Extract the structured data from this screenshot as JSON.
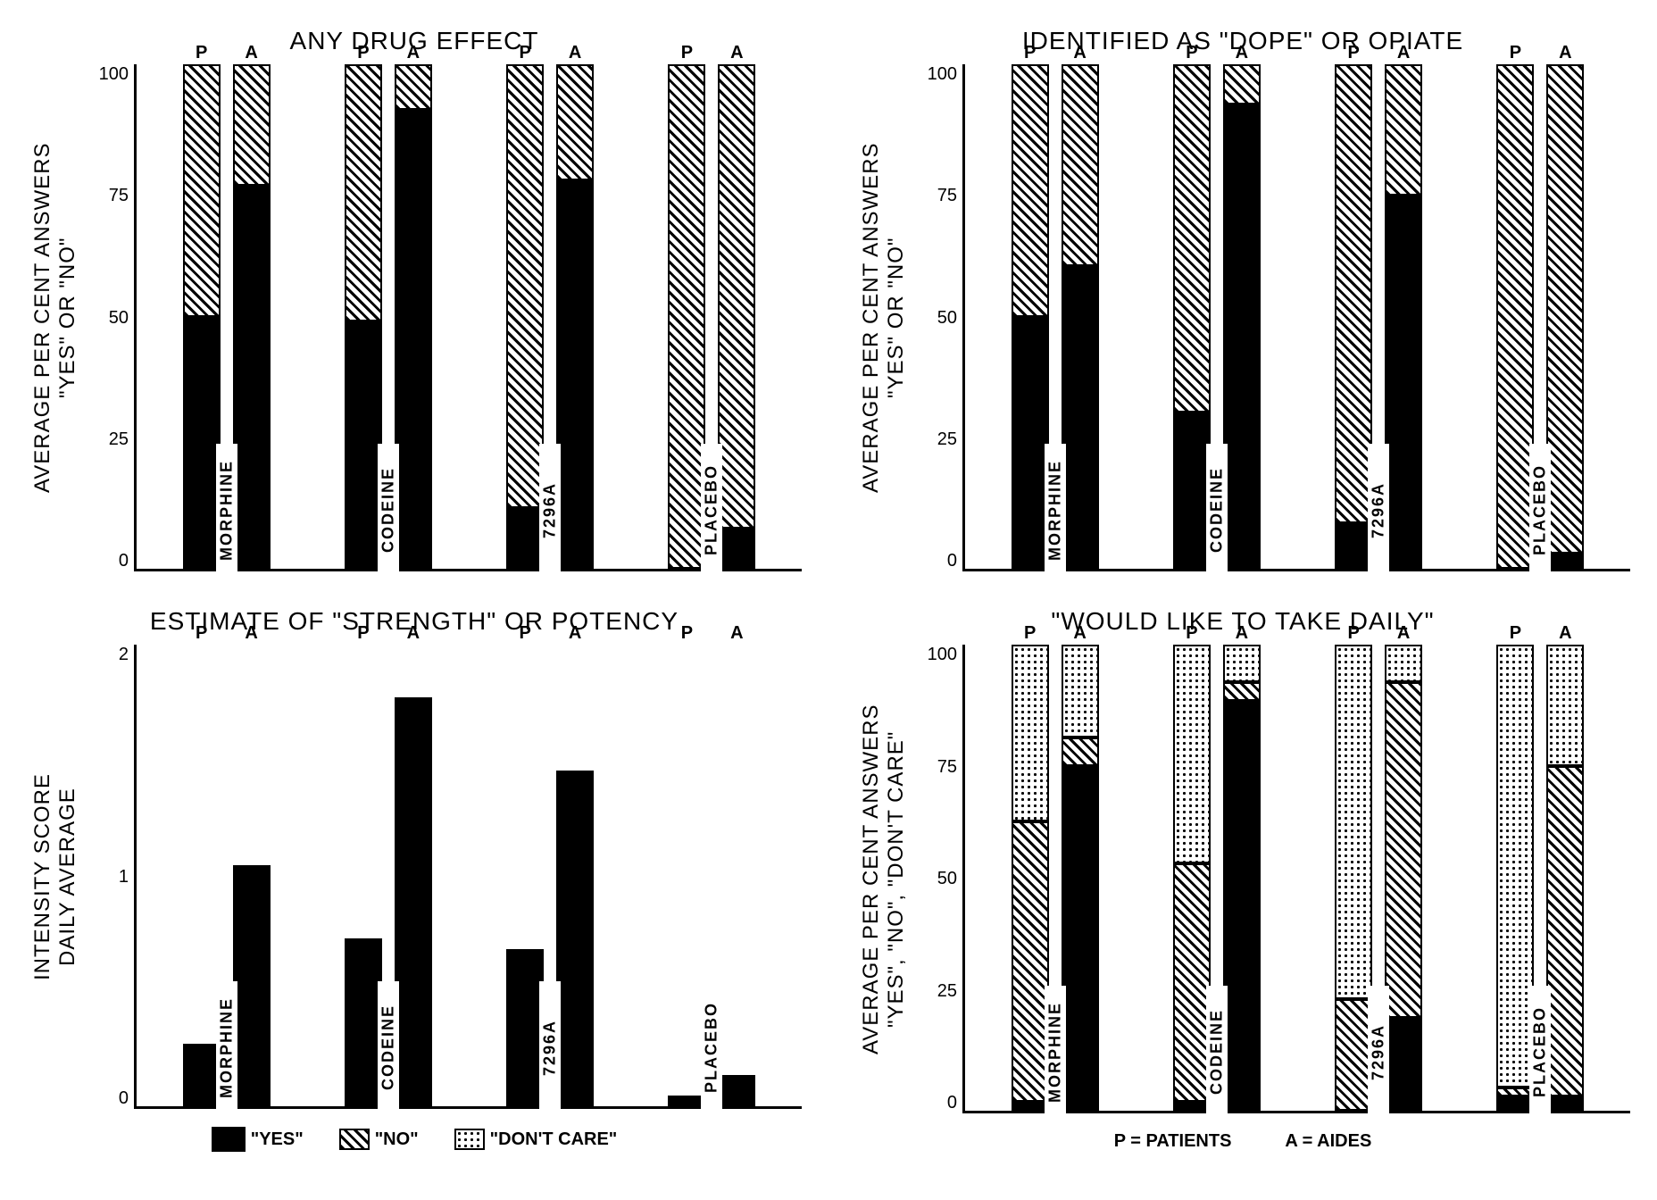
{
  "colors": {
    "yes": "#000000",
    "bg": "#ffffff",
    "axis": "#000000"
  },
  "legend": {
    "yes": "\"YES\"",
    "no": "\"NO\"",
    "dontcare": "\"DON'T CARE\""
  },
  "footer": {
    "p": "P = PATIENTS",
    "a": "A = AIDES"
  },
  "pa": {
    "p": "P",
    "a": "A"
  },
  "drugs": [
    "MORPHINE",
    "CODEINE",
    "7296A",
    "PLACEBO"
  ],
  "panels": {
    "tl": {
      "title": "ANY DRUG EFFECT",
      "ylabel": "AVERAGE PER CENT ANSWERS\n\"YES\" OR \"NO\"",
      "ymax": 100,
      "yticks": [
        0,
        25,
        50,
        75,
        100
      ],
      "type": "stacked_yesno",
      "data": [
        {
          "drug": "MORPHINE",
          "P": {
            "yes": 50,
            "no": 50
          },
          "A": {
            "yes": 76,
            "no": 24
          }
        },
        {
          "drug": "CODEINE",
          "P": {
            "yes": 49,
            "no": 51
          },
          "A": {
            "yes": 91,
            "no": 9
          }
        },
        {
          "drug": "7296A",
          "P": {
            "yes": 12,
            "no": 88
          },
          "A": {
            "yes": 77,
            "no": 23
          }
        },
        {
          "drug": "PLACEBO",
          "P": {
            "yes": 0,
            "no": 100
          },
          "A": {
            "yes": 8,
            "no": 92
          }
        }
      ]
    },
    "tr": {
      "title": "IDENTIFIED AS \"DOPE\" OR OPIATE",
      "ylabel": "AVERAGE PER CENT ANSWERS\n\"YES\" OR \"NO\"",
      "ymax": 100,
      "yticks": [
        0,
        25,
        50,
        75,
        100
      ],
      "type": "stacked_yesno",
      "data": [
        {
          "drug": "MORPHINE",
          "P": {
            "yes": 50,
            "no": 50
          },
          "A": {
            "yes": 60,
            "no": 40
          }
        },
        {
          "drug": "CODEINE",
          "P": {
            "yes": 31,
            "no": 69
          },
          "A": {
            "yes": 92,
            "no": 8
          }
        },
        {
          "drug": "7296A",
          "P": {
            "yes": 9,
            "no": 91
          },
          "A": {
            "yes": 74,
            "no": 26
          }
        },
        {
          "drug": "PLACEBO",
          "P": {
            "yes": 0,
            "no": 100
          },
          "A": {
            "yes": 3,
            "no": 97
          }
        }
      ]
    },
    "bl": {
      "title": "ESTIMATE OF \"STRENGTH\" OR POTENCY",
      "ylabel": "INTENSITY SCORE\nDAILY AVERAGE",
      "ymax": 2.2,
      "yticks": [
        0,
        1,
        2
      ],
      "type": "simple",
      "data": [
        {
          "drug": "MORPHINE",
          "P": 0.3,
          "A": 1.15
        },
        {
          "drug": "CODEINE",
          "P": 0.8,
          "A": 1.95
        },
        {
          "drug": "7296A",
          "P": 0.75,
          "A": 1.6
        },
        {
          "drug": "PLACEBO",
          "P": 0.05,
          "A": 0.15
        }
      ]
    },
    "br": {
      "title": "\"WOULD LIKE TO TAKE DAILY\"",
      "ylabel": "AVERAGE PER CENT ANSWERS\n\"YES\", \"NO\", \"DON'T CARE\"",
      "ymax": 100,
      "yticks": [
        0,
        25,
        50,
        75,
        100
      ],
      "type": "stacked_3",
      "data": [
        {
          "drug": "MORPHINE",
          "P": {
            "yes": 2,
            "no": 60,
            "dc": 38
          },
          "A": {
            "yes": 74,
            "no": 6,
            "dc": 20
          }
        },
        {
          "drug": "CODEINE",
          "P": {
            "yes": 2,
            "no": 51,
            "dc": 47
          },
          "A": {
            "yes": 88,
            "no": 4,
            "dc": 8
          }
        },
        {
          "drug": "7296A",
          "P": {
            "yes": 0,
            "no": 24,
            "dc": 76
          },
          "A": {
            "yes": 20,
            "no": 72,
            "dc": 8
          }
        },
        {
          "drug": "PLACEBO",
          "P": {
            "yes": 3,
            "no": 2,
            "dc": 95
          },
          "A": {
            "yes": 3,
            "no": 71,
            "dc": 26
          }
        }
      ]
    }
  }
}
